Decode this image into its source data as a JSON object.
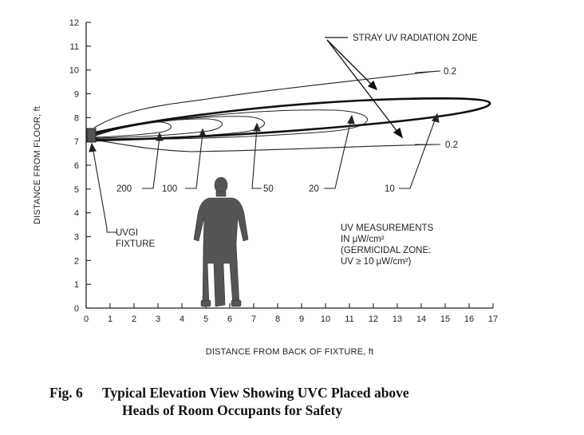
{
  "axes": {
    "xlabel": "DISTANCE FROM BACK OF FIXTURE, ft",
    "ylabel": "DISTANCE FROM FLOOR, ft",
    "xticks": [
      "0",
      "1",
      "2",
      "3",
      "4",
      "5",
      "6",
      "7",
      "8",
      "9",
      "10",
      "11",
      "12",
      "13",
      "14",
      "15",
      "16",
      "17"
    ],
    "yticks": [
      "0",
      "1",
      "2",
      "3",
      "4",
      "5",
      "6",
      "7",
      "8",
      "9",
      "10",
      "11",
      "12"
    ],
    "xlim": [
      0,
      17
    ],
    "ylim": [
      0,
      12
    ]
  },
  "labels": {
    "stray_zone": "STRAY UV RADIATION ZONE",
    "stray_upper": "0.2",
    "stray_lower": "0.2",
    "c200": "200",
    "c100": "100",
    "c50": "50",
    "c20": "20",
    "c10": "10",
    "fixture_line1": "UVGI",
    "fixture_line2": "FIXTURE",
    "meas_line1": "UV MEASUREMENTS",
    "meas_line2": "IN μW/cm²",
    "meas_line3": "(GERMICIDAL ZONE:",
    "meas_line4": "UV ≥ 10 μW/cm²)"
  },
  "caption": {
    "number": "Fig. 6",
    "line1": "Typical Elevation View Showing UVC Placed above",
    "line2": "Heads of Room Occupants for Safety"
  },
  "contours": {
    "germicidal_tip_ft": [
      17,
      8.6
    ],
    "stray_upper_end_ft": [
      14.7,
      9.9
    ],
    "stray_lower_end_ft": [
      14.7,
      6.9
    ]
  }
}
